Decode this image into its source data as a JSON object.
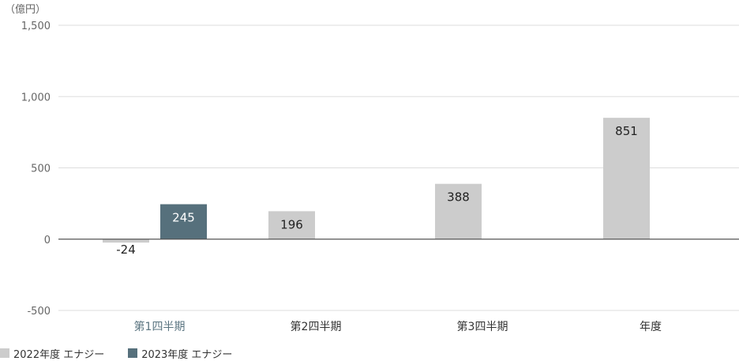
{
  "chart_data": {
    "type": "bar",
    "unit_label": "（億円）",
    "categories": [
      "第1四半期",
      "第2四半期",
      "第3四半期",
      "年度"
    ],
    "active_category": 0,
    "ylim": [
      -500,
      1500
    ],
    "yticks": [
      -500,
      0,
      500,
      1000,
      1500
    ],
    "ytick_labels": [
      "-500",
      "0",
      "500",
      "1,000",
      "1,500"
    ],
    "grid": true,
    "legend_position": "bottom-left",
    "series": [
      {
        "name": "2022年度 エナジー",
        "color": "#cccccc",
        "values": [
          -24,
          196,
          388,
          851
        ]
      },
      {
        "name": "2023年度 エナジー",
        "color": "#56707c",
        "values": [
          245,
          null,
          null,
          null
        ]
      }
    ]
  }
}
